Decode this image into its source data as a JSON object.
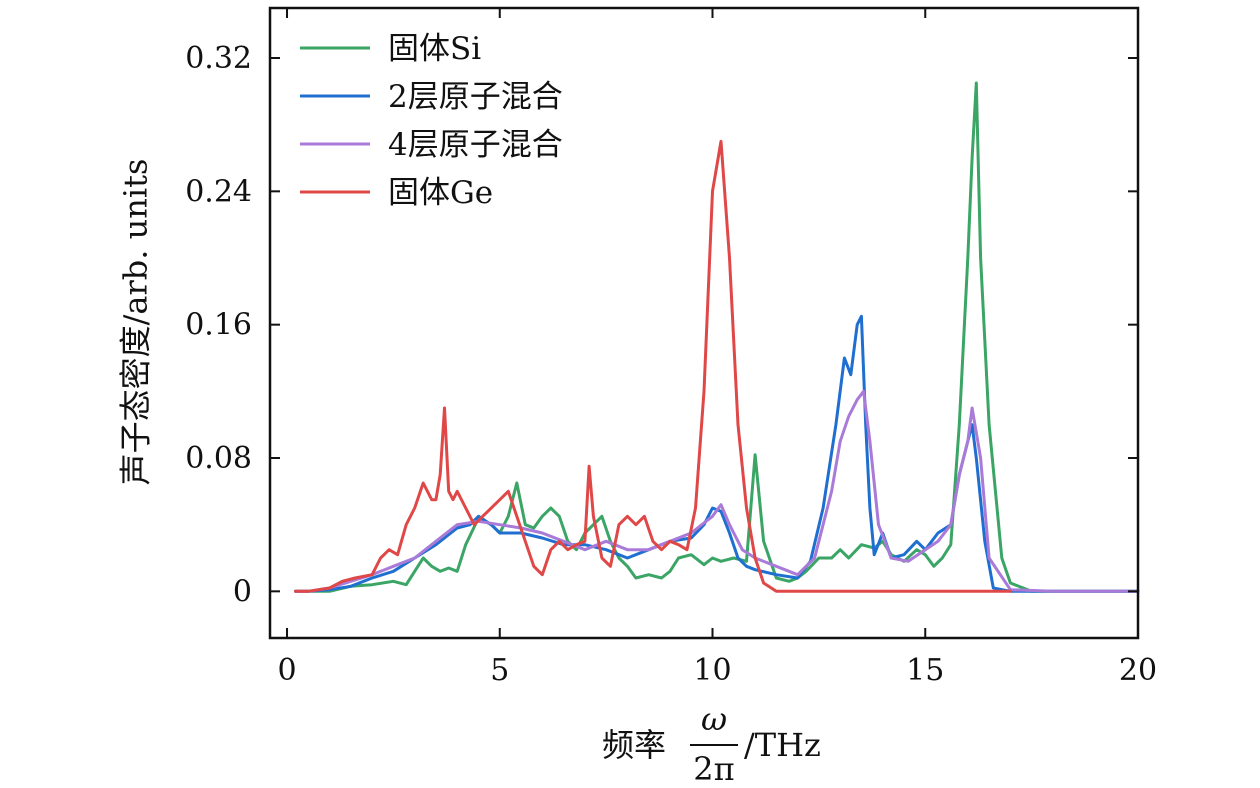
{
  "chart_data": {
    "type": "line",
    "ylabel": "声子态密度/arb. units",
    "xlabel_prefix": "频率",
    "xlabel_numerator": "ω",
    "xlabel_denominator": "2π",
    "xlabel_suffix": "/THz",
    "xlim": [
      -0.4,
      20
    ],
    "ylim": [
      -0.028,
      0.35
    ],
    "xticks": [
      0,
      5,
      10,
      15,
      20
    ],
    "xtick_labels": [
      "0",
      "5",
      "10",
      "15",
      "20"
    ],
    "yticks": [
      0,
      0.08,
      0.16,
      0.24,
      0.32
    ],
    "ytick_labels": [
      "0",
      "0.08",
      "0.16",
      "0.24",
      "0.32"
    ],
    "legend_position": "top-left",
    "series": [
      {
        "name": "固体Si",
        "color": "#3aa565",
        "x": [
          0.2,
          0.5,
          1.0,
          1.5,
          2.0,
          2.5,
          2.8,
          3.0,
          3.2,
          3.4,
          3.6,
          3.8,
          4.0,
          4.2,
          4.5,
          4.8,
          5.0,
          5.2,
          5.4,
          5.6,
          5.8,
          6.0,
          6.2,
          6.4,
          6.6,
          6.8,
          7.0,
          7.2,
          7.4,
          7.6,
          7.8,
          8.0,
          8.2,
          8.5,
          8.8,
          9.0,
          9.2,
          9.5,
          9.8,
          10.0,
          10.2,
          10.5,
          10.8,
          11.0,
          11.2,
          11.5,
          11.8,
          12.0,
          12.2,
          12.5,
          12.8,
          13.0,
          13.2,
          13.5,
          13.8,
          14.0,
          14.2,
          14.5,
          14.8,
          15.0,
          15.2,
          15.4,
          15.6,
          15.8,
          16.0,
          16.1,
          16.2,
          16.3,
          16.5,
          16.8,
          17.0,
          17.5,
          18.0,
          19.0,
          20.0
        ],
        "y": [
          0.0,
          0.0,
          0.0,
          0.003,
          0.004,
          0.006,
          0.004,
          0.012,
          0.02,
          0.015,
          0.012,
          0.014,
          0.012,
          0.028,
          0.044,
          0.04,
          0.035,
          0.045,
          0.065,
          0.04,
          0.038,
          0.045,
          0.05,
          0.045,
          0.03,
          0.025,
          0.035,
          0.04,
          0.045,
          0.03,
          0.02,
          0.015,
          0.008,
          0.01,
          0.008,
          0.012,
          0.02,
          0.022,
          0.016,
          0.02,
          0.018,
          0.02,
          0.018,
          0.082,
          0.03,
          0.008,
          0.006,
          0.008,
          0.012,
          0.02,
          0.02,
          0.025,
          0.02,
          0.028,
          0.026,
          0.03,
          0.022,
          0.018,
          0.025,
          0.022,
          0.015,
          0.02,
          0.028,
          0.1,
          0.2,
          0.26,
          0.305,
          0.2,
          0.1,
          0.02,
          0.005,
          0.0,
          0.0,
          0.0,
          0.0
        ]
      },
      {
        "name": "2层原子混合",
        "color": "#1f6fd1",
        "x": [
          0.2,
          0.5,
          1.0,
          1.5,
          2.0,
          2.5,
          3.0,
          3.5,
          4.0,
          4.3,
          4.5,
          4.8,
          5.0,
          5.5,
          6.0,
          6.5,
          7.0,
          7.5,
          8.0,
          8.5,
          9.0,
          9.5,
          9.8,
          10.0,
          10.2,
          10.4,
          10.6,
          10.8,
          11.0,
          11.5,
          12.0,
          12.3,
          12.6,
          12.9,
          13.1,
          13.25,
          13.4,
          13.5,
          13.6,
          13.7,
          13.8,
          14.0,
          14.2,
          14.5,
          14.8,
          15.0,
          15.3,
          15.6,
          15.8,
          16.0,
          16.1,
          16.2,
          16.4,
          16.6,
          17.0,
          18.0,
          19.0,
          20.0
        ],
        "y": [
          0.0,
          0.0,
          0.001,
          0.003,
          0.008,
          0.012,
          0.02,
          0.028,
          0.038,
          0.04,
          0.045,
          0.04,
          0.035,
          0.035,
          0.032,
          0.028,
          0.028,
          0.025,
          0.02,
          0.025,
          0.03,
          0.032,
          0.04,
          0.05,
          0.048,
          0.035,
          0.02,
          0.015,
          0.013,
          0.01,
          0.008,
          0.018,
          0.05,
          0.1,
          0.14,
          0.13,
          0.16,
          0.165,
          0.1,
          0.05,
          0.022,
          0.035,
          0.02,
          0.022,
          0.03,
          0.025,
          0.035,
          0.04,
          0.07,
          0.09,
          0.1,
          0.08,
          0.03,
          0.002,
          0.0,
          0.0,
          0.0,
          0.0
        ]
      },
      {
        "name": "4层原子混合",
        "color": "#a97ad8",
        "x": [
          0.2,
          0.5,
          1.0,
          1.5,
          2.0,
          2.5,
          3.0,
          3.5,
          4.0,
          4.5,
          5.0,
          5.5,
          6.0,
          6.5,
          7.0,
          7.5,
          8.0,
          8.5,
          9.0,
          9.5,
          10.0,
          10.2,
          10.4,
          10.7,
          11.0,
          11.5,
          12.0,
          12.4,
          12.8,
          13.0,
          13.2,
          13.4,
          13.55,
          13.7,
          13.9,
          14.2,
          14.6,
          15.0,
          15.3,
          15.6,
          15.8,
          16.0,
          16.1,
          16.3,
          16.5,
          17.0,
          18.0,
          19.0,
          20.0
        ],
        "y": [
          0.0,
          0.0,
          0.002,
          0.006,
          0.01,
          0.015,
          0.02,
          0.03,
          0.04,
          0.042,
          0.04,
          0.038,
          0.035,
          0.03,
          0.025,
          0.03,
          0.025,
          0.025,
          0.03,
          0.035,
          0.045,
          0.052,
          0.04,
          0.025,
          0.02,
          0.015,
          0.01,
          0.02,
          0.06,
          0.09,
          0.105,
          0.115,
          0.12,
          0.09,
          0.04,
          0.02,
          0.018,
          0.025,
          0.03,
          0.04,
          0.07,
          0.09,
          0.11,
          0.08,
          0.02,
          0.001,
          0.0,
          0.0,
          0.0
        ]
      },
      {
        "name": "固体Ge",
        "color": "#e04848",
        "x": [
          0.2,
          0.5,
          1.0,
          1.3,
          1.6,
          2.0,
          2.2,
          2.4,
          2.6,
          2.8,
          3.0,
          3.2,
          3.4,
          3.5,
          3.6,
          3.7,
          3.8,
          3.9,
          4.0,
          4.2,
          4.4,
          4.6,
          4.8,
          5.0,
          5.2,
          5.4,
          5.6,
          5.8,
          6.0,
          6.2,
          6.4,
          6.6,
          6.8,
          7.0,
          7.1,
          7.2,
          7.4,
          7.6,
          7.8,
          8.0,
          8.2,
          8.4,
          8.6,
          8.8,
          9.0,
          9.2,
          9.4,
          9.6,
          9.8,
          10.0,
          10.2,
          10.4,
          10.6,
          10.8,
          11.0,
          11.2,
          11.5,
          12.0,
          13.0,
          14.0,
          15.0,
          16.0,
          17.0
        ],
        "y": [
          0.0,
          0.0,
          0.002,
          0.006,
          0.008,
          0.01,
          0.02,
          0.025,
          0.022,
          0.04,
          0.05,
          0.065,
          0.055,
          0.055,
          0.07,
          0.11,
          0.06,
          0.055,
          0.06,
          0.05,
          0.04,
          0.045,
          0.05,
          0.055,
          0.06,
          0.045,
          0.03,
          0.015,
          0.01,
          0.025,
          0.03,
          0.025,
          0.028,
          0.03,
          0.075,
          0.045,
          0.02,
          0.015,
          0.04,
          0.045,
          0.04,
          0.045,
          0.03,
          0.025,
          0.03,
          0.028,
          0.025,
          0.05,
          0.12,
          0.24,
          0.27,
          0.2,
          0.1,
          0.05,
          0.02,
          0.005,
          0.0,
          0.0,
          0.0,
          0.0,
          0.0,
          0.0,
          0.0
        ]
      }
    ]
  }
}
